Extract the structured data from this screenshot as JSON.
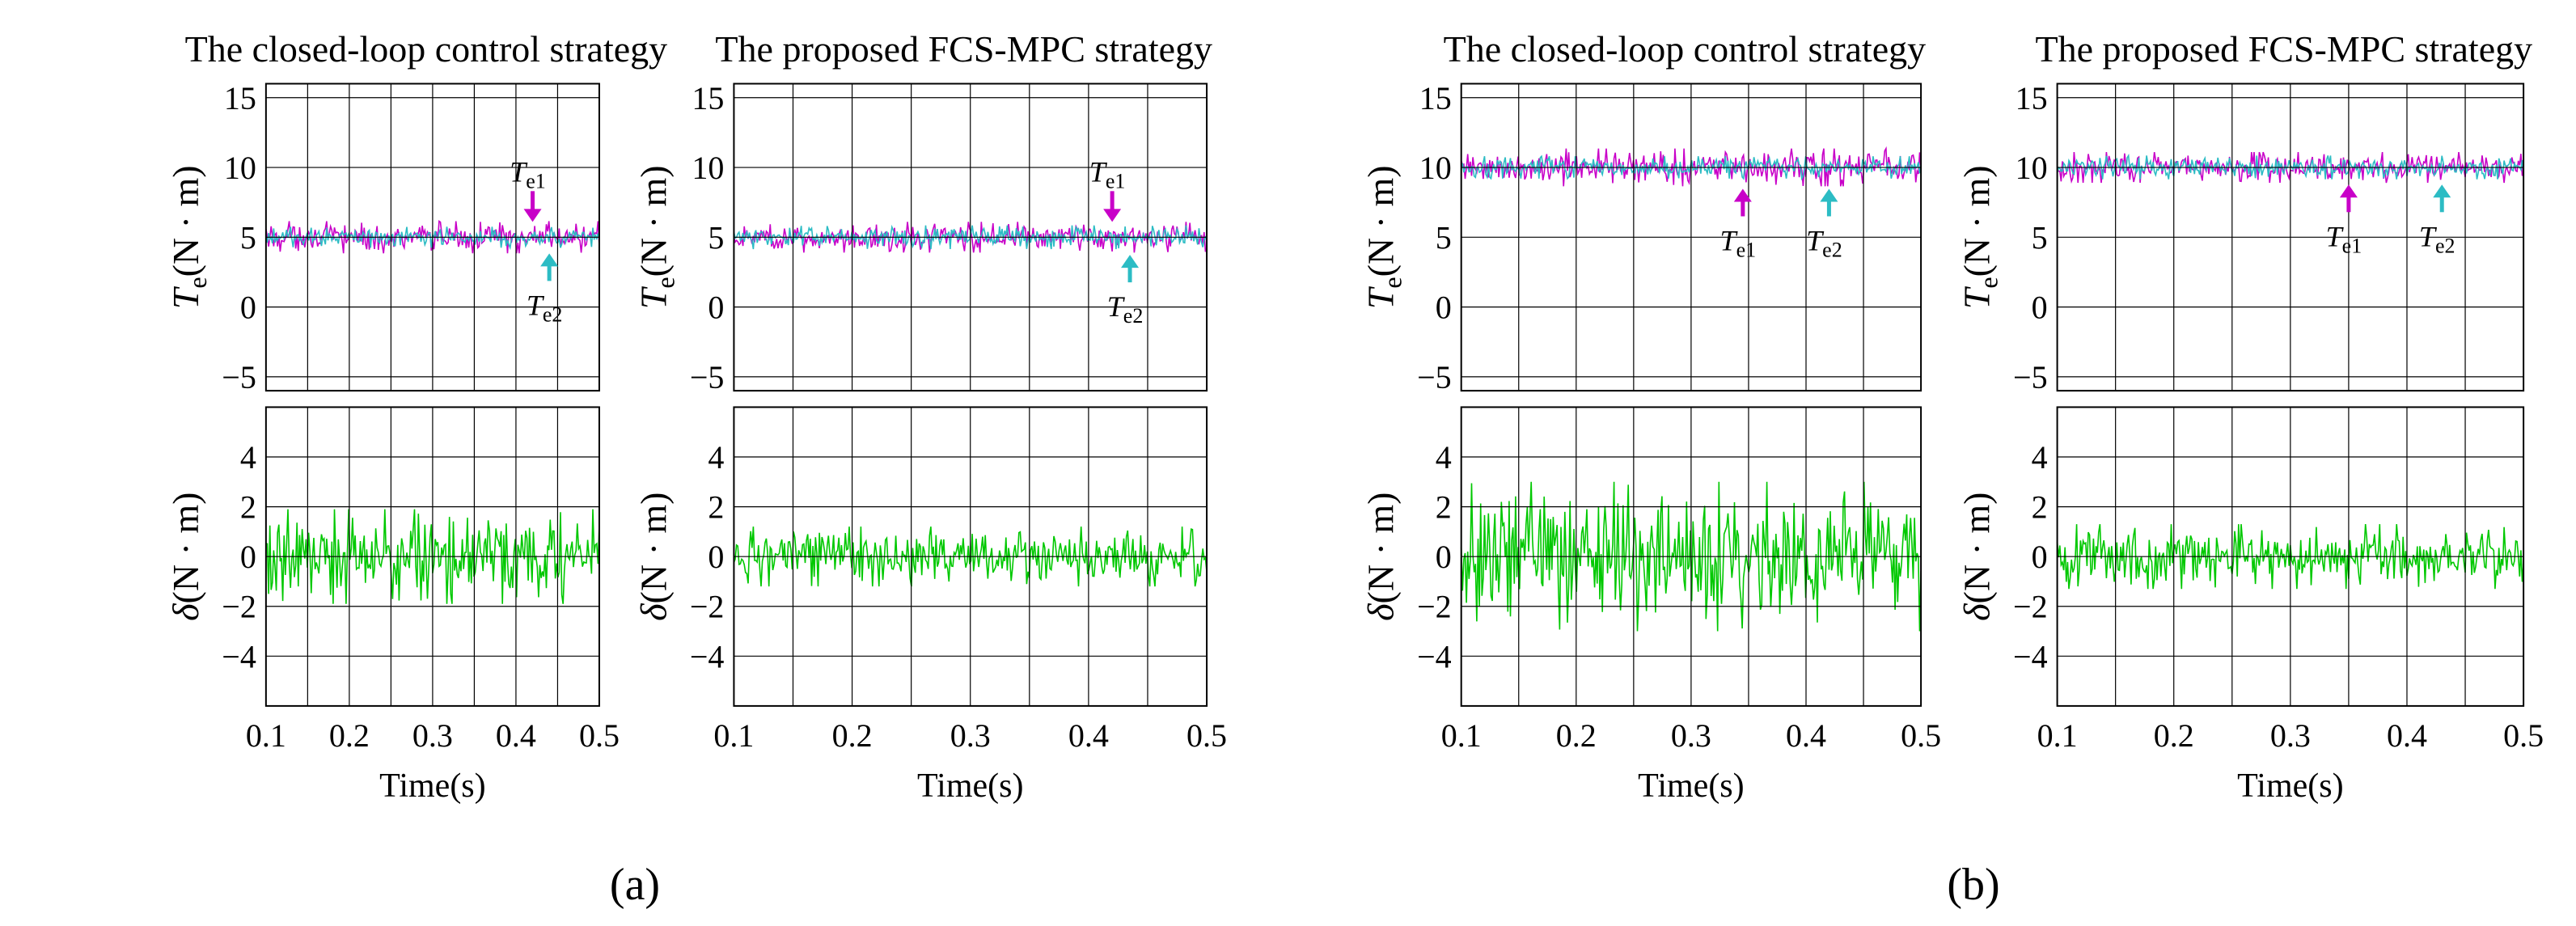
{
  "colors": {
    "te1": "#c800c8",
    "te2": "#2cbcc4",
    "delta": "#00c800",
    "grid": "#000000",
    "axis": "#000000"
  },
  "groups": [
    {
      "label": "(a)"
    },
    {
      "label": "(b)"
    }
  ],
  "annotations": {
    "te1_base": "T",
    "te1_sub": "e1",
    "te2_base": "T",
    "te2_sub": "e2"
  },
  "axis_labels": {
    "torque_base": "T",
    "torque_sub": "e",
    "torque_unit": "(N · m)",
    "delta_base": "δ",
    "delta_unit": "(N · m)",
    "time": "Time(s)"
  },
  "chart_data": [
    {
      "id": "a-closed-loop-torque",
      "group": "(a)",
      "type": "line",
      "title": "The closed-loop control strategy",
      "xlabel": "",
      "ylabel": "Te(N · m)",
      "xlim": [
        0.1,
        0.5
      ],
      "ylim": [
        -6,
        16
      ],
      "xticks": [
        0.1,
        0.2,
        0.3,
        0.4,
        0.5
      ],
      "yticks": [
        -5,
        0,
        5,
        10,
        15
      ],
      "ytick_labels": [
        "−5",
        "0",
        "5",
        "10",
        "15"
      ],
      "grid": true,
      "series": [
        {
          "name": "Te1",
          "color": "#c800c8",
          "mean": 5.0,
          "min": 3.9,
          "max": 6.2
        },
        {
          "name": "Te2",
          "color": "#2cbcc4",
          "mean": 5.0,
          "min": 4.3,
          "max": 5.8
        }
      ],
      "annotations": [
        {
          "text": "Te1",
          "x": 0.42,
          "y": 6.1,
          "direction": "down"
        },
        {
          "text": "Te2",
          "x": 0.44,
          "y": 4.0,
          "direction": "up"
        }
      ]
    },
    {
      "id": "a-closed-loop-delta",
      "group": "(a)",
      "type": "line",
      "title": "",
      "xlabel": "Time(s)",
      "ylabel": "δ(N · m)",
      "xlim": [
        0.1,
        0.5
      ],
      "ylim": [
        -6,
        6
      ],
      "xticks": [
        0.1,
        0.2,
        0.3,
        0.4,
        0.5
      ],
      "xtick_labels": [
        "0.1",
        "0.2",
        "0.3",
        "0.4",
        "0.5"
      ],
      "yticks": [
        -4,
        -2,
        0,
        2,
        4
      ],
      "ytick_labels": [
        "−4",
        "−2",
        "0",
        "2",
        "4"
      ],
      "grid": true,
      "series": [
        {
          "name": "δ",
          "color": "#00c800",
          "mean": 0.0,
          "min": -1.9,
          "max": 1.9
        }
      ]
    },
    {
      "id": "a-fcs-mpc-torque",
      "group": "(a)",
      "type": "line",
      "title": "The proposed FCS-MPC strategy",
      "xlabel": "",
      "ylabel": "Te(N · m)",
      "xlim": [
        0.1,
        0.5
      ],
      "ylim": [
        -6,
        16
      ],
      "xticks": [
        0.1,
        0.2,
        0.3,
        0.4,
        0.5
      ],
      "yticks": [
        -5,
        0,
        5,
        10,
        15
      ],
      "ytick_labels": [
        "−5",
        "0",
        "5",
        "10",
        "15"
      ],
      "grid": true,
      "series": [
        {
          "name": "Te1",
          "color": "#c800c8",
          "mean": 5.0,
          "min": 4.0,
          "max": 6.2
        },
        {
          "name": "Te2",
          "color": "#2cbcc4",
          "mean": 5.0,
          "min": 4.2,
          "max": 5.9
        }
      ],
      "annotations": [
        {
          "text": "Te1",
          "x": 0.42,
          "y": 6.1,
          "direction": "down"
        },
        {
          "text": "Te2",
          "x": 0.435,
          "y": 4.0,
          "direction": "up"
        }
      ]
    },
    {
      "id": "a-fcs-mpc-delta",
      "group": "(a)",
      "type": "line",
      "title": "",
      "xlabel": "Time(s)",
      "ylabel": "δ(N · m)",
      "xlim": [
        0.1,
        0.5
      ],
      "ylim": [
        -6,
        6
      ],
      "xticks": [
        0.1,
        0.2,
        0.3,
        0.4,
        0.5
      ],
      "xtick_labels": [
        "0.1",
        "0.2",
        "0.3",
        "0.4",
        "0.5"
      ],
      "yticks": [
        -4,
        -2,
        0,
        2,
        4
      ],
      "ytick_labels": [
        "−4",
        "−2",
        "0",
        "2",
        "4"
      ],
      "grid": true,
      "series": [
        {
          "name": "δ",
          "color": "#00c800",
          "mean": 0.0,
          "min": -1.1,
          "max": 1.3
        }
      ]
    },
    {
      "id": "b-closed-loop-torque",
      "group": "(b)",
      "type": "line",
      "title": "The closed-loop control strategy",
      "xlabel": "",
      "ylabel": "Te(N · m)",
      "xlim": [
        0.1,
        0.5
      ],
      "ylim": [
        -6,
        16
      ],
      "xticks": [
        0.1,
        0.2,
        0.3,
        0.4,
        0.5
      ],
      "yticks": [
        -5,
        0,
        5,
        10,
        15
      ],
      "ytick_labels": [
        "−5",
        "0",
        "5",
        "10",
        "15"
      ],
      "grid": true,
      "series": [
        {
          "name": "Te1",
          "color": "#c800c8",
          "mean": 10.0,
          "min": 8.7,
          "max": 11.4
        },
        {
          "name": "Te2",
          "color": "#2cbcc4",
          "mean": 10.0,
          "min": 9.2,
          "max": 10.8
        }
      ],
      "annotations": [
        {
          "text": "Te1",
          "x": 0.345,
          "y": 7.6,
          "direction": "up"
        },
        {
          "text": "Te2",
          "x": 0.42,
          "y": 7.6,
          "direction": "up"
        }
      ]
    },
    {
      "id": "b-closed-loop-delta",
      "group": "(b)",
      "type": "line",
      "title": "",
      "xlabel": "Time(s)",
      "ylabel": "δ(N · m)",
      "xlim": [
        0.1,
        0.5
      ],
      "ylim": [
        -6,
        6
      ],
      "xticks": [
        0.1,
        0.2,
        0.3,
        0.4,
        0.5
      ],
      "xtick_labels": [
        "0.1",
        "0.2",
        "0.3",
        "0.4",
        "0.5"
      ],
      "yticks": [
        -4,
        -2,
        0,
        2,
        4
      ],
      "ytick_labels": [
        "−4",
        "−2",
        "0",
        "2",
        "4"
      ],
      "grid": true,
      "series": [
        {
          "name": "δ",
          "color": "#00c800",
          "mean": 0.0,
          "min": -2.9,
          "max": 3.1
        }
      ]
    },
    {
      "id": "b-fcs-mpc-torque",
      "group": "(b)",
      "type": "line",
      "title": "The proposed FCS-MPC strategy",
      "xlabel": "",
      "ylabel": "Te(N · m)",
      "xlim": [
        0.1,
        0.5
      ],
      "ylim": [
        -6,
        16
      ],
      "xticks": [
        0.1,
        0.2,
        0.3,
        0.4,
        0.5
      ],
      "yticks": [
        -5,
        0,
        5,
        10,
        15
      ],
      "ytick_labels": [
        "−5",
        "0",
        "5",
        "10",
        "15"
      ],
      "grid": true,
      "series": [
        {
          "name": "Te1",
          "color": "#c800c8",
          "mean": 10.0,
          "min": 9.0,
          "max": 11.2
        },
        {
          "name": "Te2",
          "color": "#2cbcc4",
          "mean": 10.0,
          "min": 9.2,
          "max": 10.9
        }
      ],
      "annotations": [
        {
          "text": "Te1",
          "x": 0.35,
          "y": 7.6,
          "direction": "up"
        },
        {
          "text": "Te2",
          "x": 0.43,
          "y": 7.6,
          "direction": "up"
        }
      ]
    },
    {
      "id": "b-fcs-mpc-delta",
      "group": "(b)",
      "type": "line",
      "title": "",
      "xlabel": "Time(s)",
      "ylabel": "δ(N · m)",
      "xlim": [
        0.1,
        0.5
      ],
      "ylim": [
        -6,
        6
      ],
      "xticks": [
        0.1,
        0.2,
        0.3,
        0.4,
        0.5
      ],
      "xtick_labels": [
        "0.1",
        "0.2",
        "0.3",
        "0.4",
        "0.5"
      ],
      "yticks": [
        -4,
        -2,
        0,
        2,
        4
      ],
      "ytick_labels": [
        "−4",
        "−2",
        "0",
        "2",
        "4"
      ],
      "grid": true,
      "series": [
        {
          "name": "δ",
          "color": "#00c800",
          "mean": 0.0,
          "min": -1.2,
          "max": 1.4
        }
      ]
    }
  ]
}
